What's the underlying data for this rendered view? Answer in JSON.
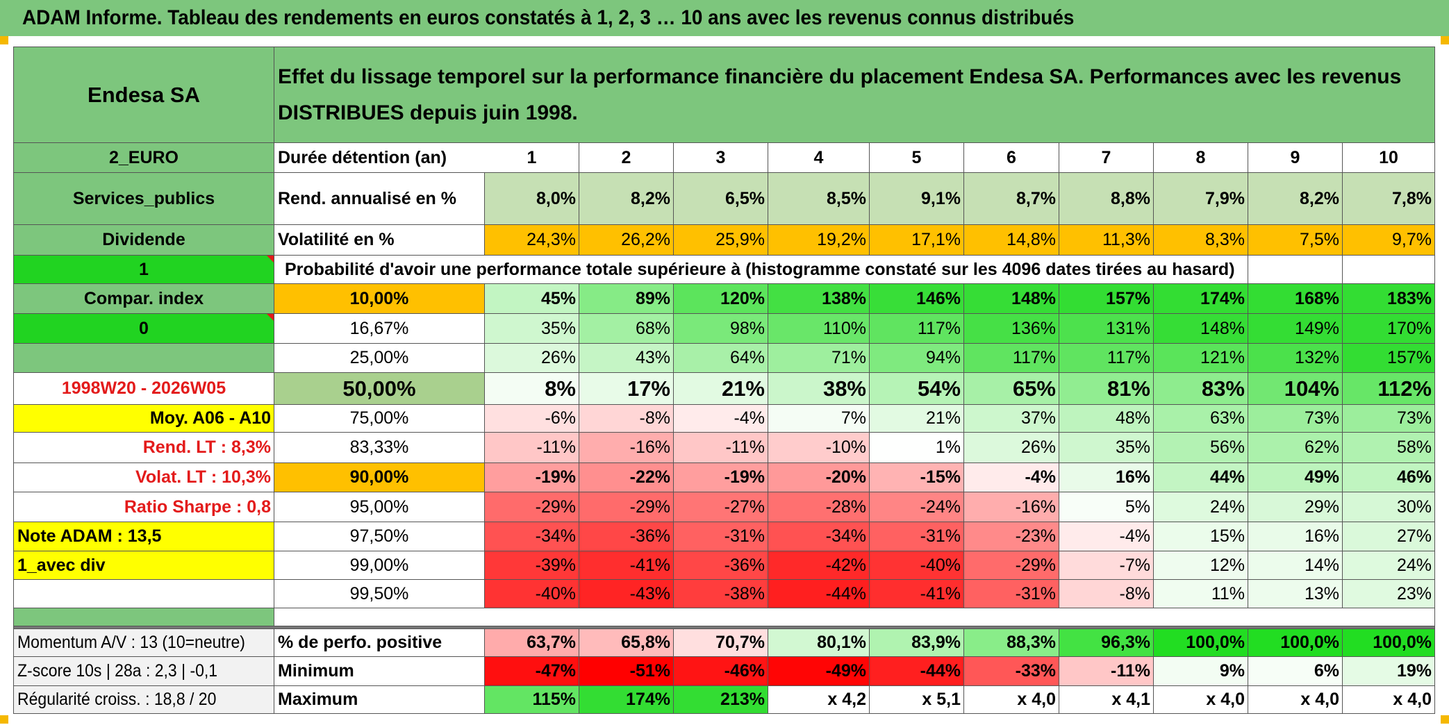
{
  "header": {
    "title": "ADAM Informe. Tableau des rendements en euros constatés à 1, 2, 3 … 10 ans avec les revenus connus distribués"
  },
  "side": {
    "name": "Endesa SA",
    "currency": "2_EURO",
    "sector": "Services_publics",
    "dividend": "Dividende",
    "flag1": "1",
    "compar_index": "Compar. index",
    "flag0": "0",
    "period": "1998W20 - 2026W05",
    "moy": "Moy. A06 - A10",
    "rend_lt": "Rend. LT :   8,3%",
    "volat_lt": "Volat. LT :   10,3%",
    "sharpe": "Ratio Sharpe :   0,8",
    "note": "Note ADAM : 13,5",
    "avec_div": "1_avec div",
    "momentum": "Momentum A/V : 13 (10=neutre)",
    "zscore": "Z-score 10s | 28a : 2,3 | -0,1",
    "regularite": "Régularité croiss. : 18,8 / 20"
  },
  "description": "Effet du lissage temporel sur la performance financière du placement Endesa SA. Performances avec les revenus DISTRIBUES depuis juin 1998.",
  "table": {
    "durations_label": "Durée détention (an)",
    "durations": [
      "1",
      "2",
      "3",
      "4",
      "5",
      "6",
      "7",
      "8",
      "9",
      "10"
    ],
    "rend_label": "Rend. annualisé en %",
    "rend": [
      "8,0%",
      "8,2%",
      "6,5%",
      "8,5%",
      "9,1%",
      "8,7%",
      "8,8%",
      "7,9%",
      "8,2%",
      "7,8%"
    ],
    "vol_label": "Volatilité en %",
    "vol": [
      "24,3%",
      "26,2%",
      "25,9%",
      "19,2%",
      "17,1%",
      "14,8%",
      "11,3%",
      "8,3%",
      "7,5%",
      "9,7%"
    ],
    "prob_caption": "Probabilité d'avoir une performance totale supérieure à (histogramme constaté sur les 4096 dates tirées au hasard)",
    "quantiles": [
      {
        "label": "10,00%",
        "values": [
          "45%",
          "89%",
          "120%",
          "138%",
          "146%",
          "148%",
          "157%",
          "174%",
          "168%",
          "183%"
        ]
      },
      {
        "label": "16,67%",
        "values": [
          "35%",
          "68%",
          "98%",
          "110%",
          "117%",
          "136%",
          "131%",
          "148%",
          "149%",
          "170%"
        ]
      },
      {
        "label": "25,00%",
        "values": [
          "26%",
          "43%",
          "64%",
          "71%",
          "94%",
          "117%",
          "117%",
          "121%",
          "132%",
          "157%"
        ]
      },
      {
        "label": "50,00%",
        "values": [
          "8%",
          "17%",
          "21%",
          "38%",
          "54%",
          "65%",
          "81%",
          "83%",
          "104%",
          "112%"
        ]
      },
      {
        "label": "75,00%",
        "values": [
          "-6%",
          "-8%",
          "-4%",
          "7%",
          "21%",
          "37%",
          "48%",
          "63%",
          "73%",
          "73%"
        ]
      },
      {
        "label": "83,33%",
        "values": [
          "-11%",
          "-16%",
          "-11%",
          "-10%",
          "1%",
          "26%",
          "35%",
          "56%",
          "62%",
          "58%"
        ]
      },
      {
        "label": "90,00%",
        "values": [
          "-19%",
          "-22%",
          "-19%",
          "-20%",
          "-15%",
          "-4%",
          "16%",
          "44%",
          "49%",
          "46%"
        ]
      },
      {
        "label": "95,00%",
        "values": [
          "-29%",
          "-29%",
          "-27%",
          "-28%",
          "-24%",
          "-16%",
          "5%",
          "24%",
          "29%",
          "30%"
        ]
      },
      {
        "label": "97,50%",
        "values": [
          "-34%",
          "-36%",
          "-31%",
          "-34%",
          "-31%",
          "-23%",
          "-4%",
          "15%",
          "16%",
          "27%"
        ]
      },
      {
        "label": "99,00%",
        "values": [
          "-39%",
          "-41%",
          "-36%",
          "-42%",
          "-40%",
          "-29%",
          "-7%",
          "12%",
          "14%",
          "24%"
        ]
      },
      {
        "label": "99,50%",
        "values": [
          "-40%",
          "-43%",
          "-38%",
          "-44%",
          "-41%",
          "-31%",
          "-8%",
          "11%",
          "13%",
          "23%"
        ]
      }
    ],
    "pos_label": "% de perfo. positive",
    "pos": [
      "63,7%",
      "65,8%",
      "70,7%",
      "80,1%",
      "83,9%",
      "88,3%",
      "96,3%",
      "100,0%",
      "100,0%",
      "100,0%"
    ],
    "min_label": "Minimum",
    "min": [
      "-47%",
      "-51%",
      "-46%",
      "-49%",
      "-44%",
      "-33%",
      "-11%",
      "9%",
      "6%",
      "19%"
    ],
    "max_label": "Maximum",
    "max": [
      "115%",
      "174%",
      "213%",
      "x 4,2",
      "x 5,1",
      "x 4,0",
      "x 4,1",
      "x 4,0",
      "x 4,0",
      "x 4,0"
    ]
  },
  "colors": {
    "header_green": "#7dc67d",
    "bright_green": "#21d321",
    "orange": "#ffc000",
    "yellow": "#ffff00",
    "label_red": "#e31b1b",
    "rend_green": "#c6e0b4",
    "median_green": "#a9d08e"
  }
}
